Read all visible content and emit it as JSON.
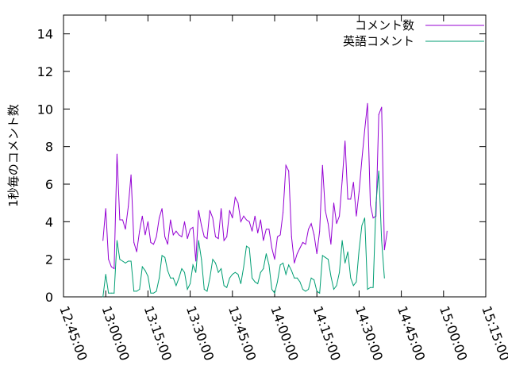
{
  "chart_data": {
    "type": "line",
    "ylabel": "1秒毎のコメント数",
    "xlabel": "",
    "grid": false,
    "legend_position": "top-right",
    "x_ticks": [
      "12:45:00",
      "13:00:00",
      "13:15:00",
      "13:30:00",
      "13:45:00",
      "14:00:00",
      "14:15:00",
      "14:30:00",
      "14:45:00",
      "15:00:00",
      "15:15:00"
    ],
    "y_ticks": [
      "0",
      "2",
      "4",
      "6",
      "8",
      "10",
      "12",
      "14"
    ],
    "xlim": [
      "12:45:00",
      "15:15:00"
    ],
    "ylim": [
      0,
      15
    ],
    "sample_interval_seconds": 60,
    "series": [
      {
        "name": "コメント数",
        "color": "#9400d3",
        "start": "12:59:00",
        "values": [
          3.0,
          4.7,
          2.0,
          1.6,
          1.5,
          7.6,
          4.1,
          4.1,
          3.6,
          4.8,
          6.5,
          2.9,
          2.4,
          3.5,
          4.3,
          3.3,
          4.0,
          2.9,
          2.8,
          3.2,
          4.2,
          4.7,
          3.2,
          2.8,
          4.1,
          3.3,
          3.5,
          3.3,
          3.2,
          4.0,
          3.1,
          3.6,
          3.7,
          1.9,
          4.6,
          3.8,
          3.2,
          3.1,
          4.6,
          4.2,
          3.2,
          3.1,
          4.7,
          3.0,
          3.2,
          4.6,
          4.2,
          5.3,
          5.0,
          4.0,
          4.3,
          4.1,
          4.0,
          3.5,
          4.3,
          3.4,
          4.1,
          3.0,
          3.6,
          3.6,
          2.6,
          2.0,
          3.2,
          3.3,
          4.5,
          7.0,
          6.7,
          3.2,
          1.8,
          2.3,
          2.6,
          2.9,
          2.8,
          3.6,
          3.9,
          3.3,
          2.3,
          3.5,
          7.0,
          4.6,
          3.9,
          2.8,
          5.0,
          3.9,
          4.3,
          6.2,
          8.3,
          5.2,
          5.2,
          6.1,
          4.3,
          5.6,
          7.3,
          8.9,
          10.3,
          4.9,
          4.2,
          4.3,
          9.7,
          10.1,
          2.5,
          3.5
        ]
      },
      {
        "name": "英語コメント",
        "color": "#009e73",
        "start": "12:59:00",
        "values": [
          0.0,
          1.2,
          0.2,
          0.2,
          0.2,
          3.0,
          2.0,
          1.9,
          1.8,
          1.9,
          1.9,
          0.3,
          0.3,
          0.4,
          1.6,
          1.4,
          1.1,
          0.2,
          0.2,
          0.3,
          1.0,
          2.2,
          2.1,
          1.4,
          1.0,
          1.0,
          0.6,
          1.0,
          1.5,
          1.3,
          0.4,
          0.7,
          1.7,
          1.3,
          3.0,
          2.0,
          0.4,
          0.3,
          1.0,
          2.0,
          1.8,
          1.3,
          1.5,
          0.6,
          0.5,
          1.0,
          1.2,
          1.3,
          1.2,
          0.7,
          1.6,
          2.7,
          2.6,
          1.0,
          0.8,
          0.7,
          1.3,
          1.5,
          2.3,
          1.7,
          0.4,
          0.2,
          0.8,
          1.7,
          1.8,
          1.2,
          1.7,
          1.4,
          1.0,
          1.0,
          0.8,
          0.4,
          0.3,
          0.4,
          1.0,
          0.9,
          0.3,
          0.2,
          2.2,
          2.1,
          2.0,
          1.1,
          0.4,
          0.6,
          1.3,
          3.0,
          1.8,
          2.4,
          1.0,
          0.6,
          0.8,
          2.5,
          3.8,
          4.2,
          0.4,
          0.5,
          0.5,
          5.0,
          6.7,
          3.0,
          1.0
        ]
      }
    ]
  }
}
